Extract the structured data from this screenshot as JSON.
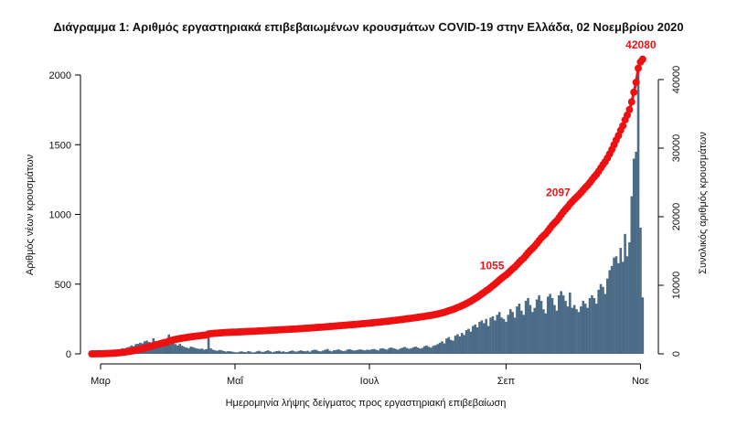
{
  "chart_data": {
    "type": "bar+line",
    "title": "Διάγραμμα 1: Αριθμός εργαστηριακά επιβεβαιωμένων κρουσμάτων COVID-19 στην Ελλάδα, 02 Νοεμβρίου 2020",
    "xlabel": "Ημερομηνία λήψης δείγματος προς εργαστηριακή επιβεβαίωση",
    "ylabel_left": "Αριθμός νέων κρουσμάτων",
    "ylabel_right": "Συνολικός αριθμός κρουσμάτων",
    "start_date": "2020-02-26",
    "x_ticks": [
      {
        "label": "Μαρ",
        "date": "2020-03-01"
      },
      {
        "label": "Μαΐ",
        "date": "2020-05-01"
      },
      {
        "label": "Ιουλ",
        "date": "2020-07-01"
      },
      {
        "label": "Σεπ",
        "date": "2020-09-01"
      },
      {
        "label": "Νοε",
        "date": "2020-11-01"
      }
    ],
    "ylim_left": [
      0,
      2000
    ],
    "yticks_left": [
      "0",
      "500",
      "1000",
      "1500",
      "2000"
    ],
    "ylim_right": [
      0,
      40000
    ],
    "yticks_right": [
      "0",
      "10000",
      "20000",
      "30000",
      "40000"
    ],
    "colors": {
      "bars": "#4b6b87",
      "cumulative": "#ee1111",
      "annotation": "#e8161b"
    },
    "daily_new_cases": [
      1,
      2,
      3,
      4,
      5,
      8,
      10,
      12,
      15,
      20,
      18,
      22,
      30,
      28,
      40,
      35,
      45,
      50,
      60,
      55,
      70,
      72,
      80,
      75,
      90,
      95,
      85,
      80,
      112,
      90,
      75,
      85,
      95,
      80,
      70,
      139,
      95,
      80,
      70,
      60,
      72,
      58,
      50,
      45,
      40,
      52,
      48,
      42,
      38,
      35,
      38,
      30,
      34,
      161,
      40,
      30,
      25,
      22,
      28,
      25,
      20,
      16,
      20,
      18,
      15,
      12,
      10,
      15,
      18,
      14,
      12,
      20,
      16,
      10,
      12,
      18,
      22,
      15,
      14,
      20,
      25,
      18,
      12,
      16,
      20,
      22,
      15,
      18,
      12,
      14,
      20,
      24,
      18,
      16,
      22,
      25,
      20,
      18,
      22,
      15,
      25,
      30,
      28,
      20,
      18,
      24,
      30,
      35,
      22,
      18,
      26,
      28,
      32,
      25,
      20,
      22,
      30,
      34,
      28,
      24,
      26,
      30,
      32,
      28,
      25,
      30,
      28,
      32,
      35,
      30,
      25,
      38,
      40,
      35,
      30,
      42,
      45,
      40,
      35,
      30,
      38,
      44,
      50,
      42,
      36,
      40,
      48,
      52,
      45,
      38,
      42,
      55,
      60,
      50,
      45,
      58,
      62,
      70,
      80,
      90,
      75,
      110,
      120,
      100,
      95,
      130,
      140,
      125,
      150,
      135,
      170,
      180,
      160,
      200,
      210,
      190,
      230,
      240,
      220,
      250,
      200,
      260,
      270,
      240,
      280,
      300,
      260,
      250,
      230,
      280,
      320,
      300,
      260,
      340,
      360,
      310,
      280,
      380,
      400,
      350,
      300,
      330,
      390,
      420,
      380,
      320,
      290,
      410,
      430,
      400,
      350,
      310,
      420,
      450,
      420,
      380,
      340,
      440,
      330,
      350,
      320,
      300,
      340,
      380,
      360,
      330,
      400,
      420,
      400,
      360,
      460,
      500,
      480,
      430,
      540,
      600,
      630,
      690,
      700,
      650,
      760,
      660,
      860,
      700,
      800,
      1130,
      1400,
      1450,
      2056,
      905,
      405
    ],
    "annotations": [
      {
        "date": "2020-09-01",
        "text": "1055"
      },
      {
        "date": "2020-10-01",
        "text": "2097"
      },
      {
        "date": "2020-11-02",
        "text": "42080"
      }
    ]
  }
}
